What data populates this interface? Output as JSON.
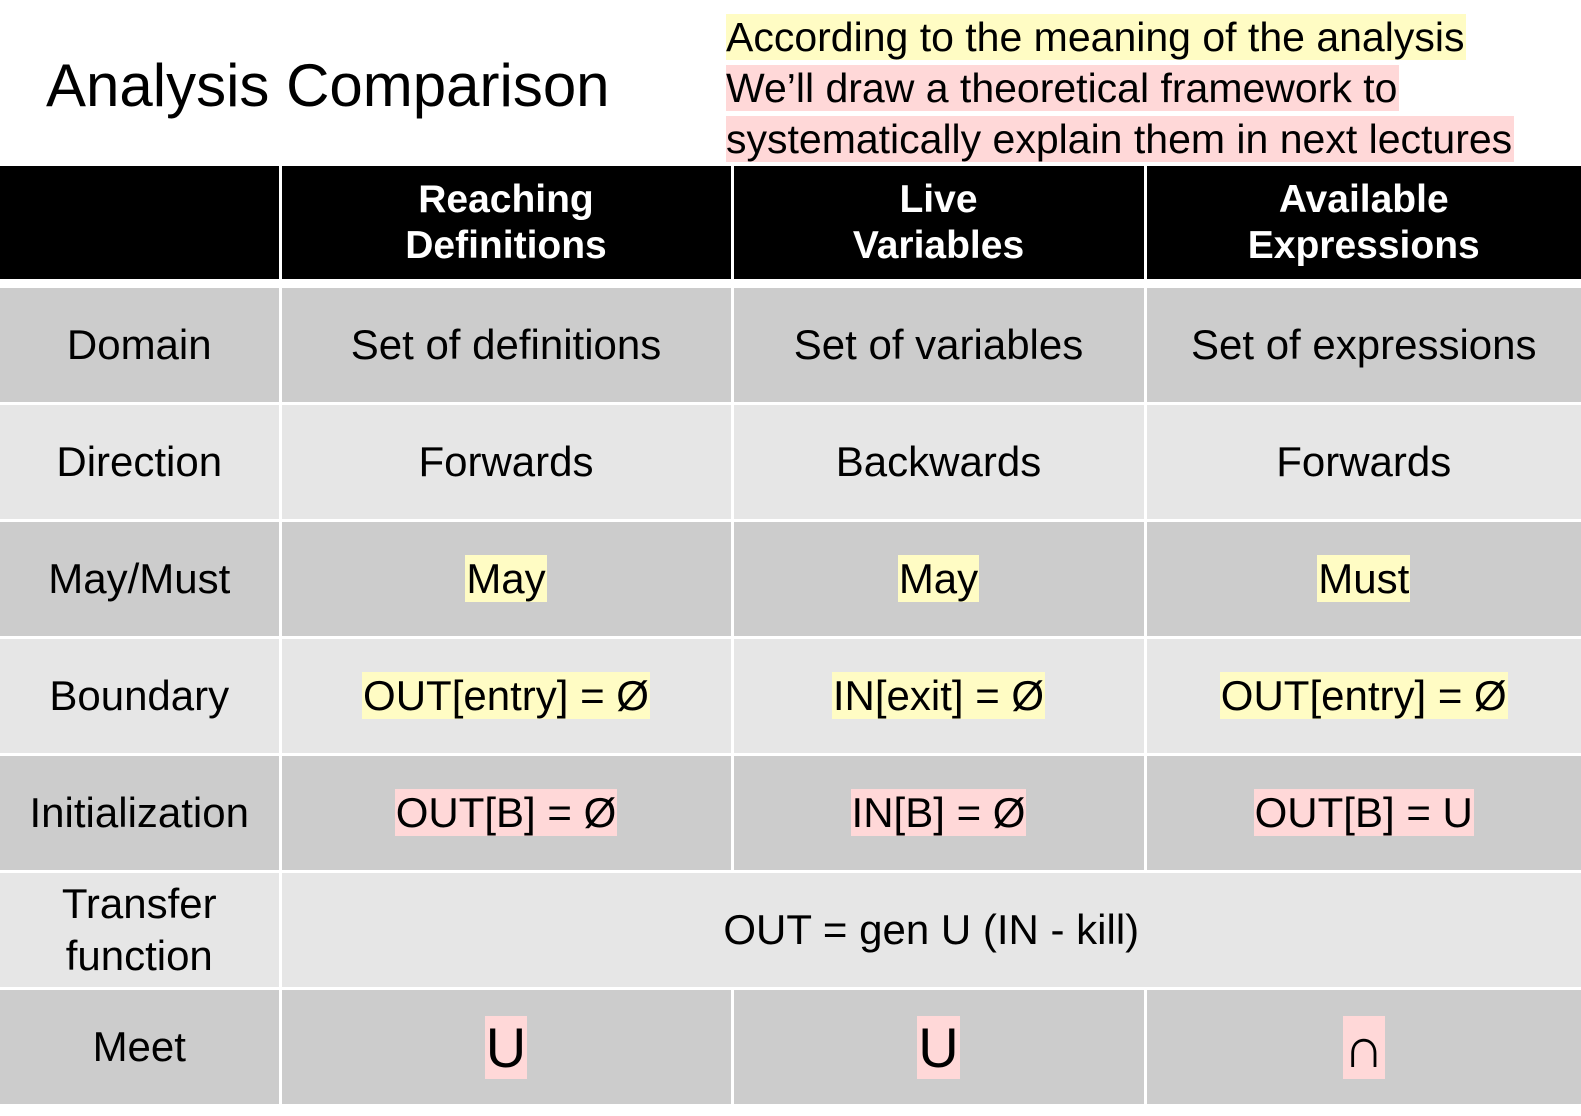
{
  "title": "Analysis Comparison",
  "note": {
    "line1": "According to the meaning of the analysis",
    "line2": "We’ll draw a theoretical framework to",
    "line3": "systematically explain them in next lectures"
  },
  "table": {
    "headers": [
      "",
      "Reaching Definitions",
      "Live Variables",
      "Available Expressions"
    ],
    "header_lines": [
      [
        "Reaching",
        "Definitions"
      ],
      [
        "Live",
        "Variables"
      ],
      [
        "Available",
        "Expressions"
      ]
    ],
    "rows": {
      "domain": {
        "label": "Domain",
        "cells": [
          "Set of definitions",
          "Set of variables",
          "Set of expressions"
        ]
      },
      "direction": {
        "label": "Direction",
        "cells": [
          "Forwards",
          "Backwards",
          "Forwards"
        ]
      },
      "maymust": {
        "label": "May/Must",
        "cells": [
          "May",
          "May",
          "Must"
        ]
      },
      "boundary": {
        "label": "Boundary",
        "cells": [
          "OUT[entry] = Ø",
          "IN[exit] = Ø",
          "OUT[entry] = Ø"
        ]
      },
      "init": {
        "label": "Initialization",
        "cells": [
          "OUT[B] = Ø",
          "IN[B] = Ø",
          "OUT[B] = U"
        ]
      },
      "transfer": {
        "label_line1": "Transfer",
        "label_line2": "function",
        "value": "OUT = gen U (IN - kill)"
      },
      "meet": {
        "label": "Meet",
        "cells": [
          "U",
          "U",
          "∩"
        ]
      }
    }
  },
  "colors": {
    "highlight_yellow": "#fffcc4",
    "highlight_pink": "#ffd8d8",
    "row_dark": "#cccccc",
    "row_light": "#e6e6e6",
    "header_bg": "#000000"
  }
}
